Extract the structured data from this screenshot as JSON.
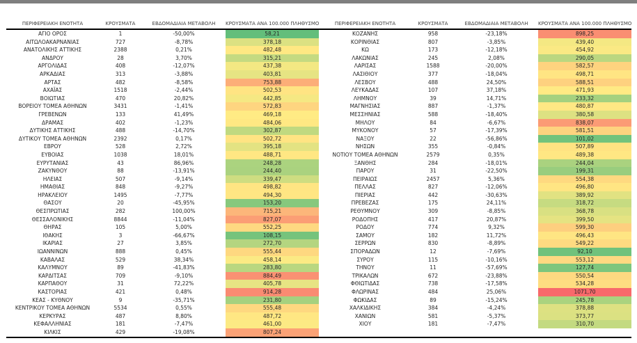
{
  "chart_data": {
    "type": "table",
    "columns": [
      "ΠΕΡΙΦΕΡΕΙΑΚΗ ΕΝΟΤΗΤΑ",
      "ΚΡΟΥΣΜΑΤΑ",
      "ΕΒΔΟΜΑΔΙΑΙΑ ΜΕΤΑΒΟΛΗ",
      "ΚΡΟΥΣΜΑΤΑ ΑΝΑ 100.000 ΠΛΗΘΥΣΜΟ"
    ],
    "heat_column": "ΚΡΟΥΣΜΑΤΑ ΑΝΑ 100.000 ΠΛΗΘΥΣΜΟ",
    "color_scale": {
      "min_color": "#63BE7B",
      "mid_color": "#FFEB84",
      "max_color": "#F8696B",
      "mid_rule": "percentile-50"
    },
    "left_rows": [
      [
        "ΑΓΙΟ ΟΡΟΣ",
        "1",
        "-50,00%",
        "58,21"
      ],
      [
        "ΑΙΤΩΛΟΑΚΑΡΝΑΝΙΑΣ",
        "727",
        "-8,78%",
        "378,18"
      ],
      [
        "ΑΝΑΤΟΛΙΚΗΣ ΑΤΤΙΚΗΣ",
        "2388",
        "0,21%",
        "482,48"
      ],
      [
        "ΑΝΔΡΟΥ",
        "28",
        "3,70%",
        "315,21"
      ],
      [
        "ΑΡΓΟΛΙΔΑΣ",
        "408",
        "-12,07%",
        "437,38"
      ],
      [
        "ΑΡΚΑΔΙΑΣ",
        "313",
        "-3,88%",
        "403,81"
      ],
      [
        "ΑΡΤΑΣ",
        "482",
        "-8,58%",
        "753,88"
      ],
      [
        "ΑΧΑΪΑΣ",
        "1518",
        "-2,44%",
        "502,53"
      ],
      [
        "ΒΟΙΩΤΙΑΣ",
        "470",
        "20,82%",
        "442,85"
      ],
      [
        "ΒΟΡΕΙΟΥ ΤΟΜΕΑ ΑΘΗΝΩΝ",
        "3431",
        "-1,41%",
        "572,83"
      ],
      [
        "ΓΡΕΒΕΝΩΝ",
        "133",
        "41,49%",
        "469,18"
      ],
      [
        "ΔΡΑΜΑΣ",
        "402",
        "-1,23%",
        "484,06"
      ],
      [
        "ΔΥΤΙΚΗΣ ΑΤΤΙΚΗΣ",
        "488",
        "-14,70%",
        "302,87"
      ],
      [
        "ΔΥΤΙΚΟΥ ΤΟΜΕΑ ΑΘΗΝΩΝ",
        "2392",
        "0,17%",
        "502,72"
      ],
      [
        "ΕΒΡΟΥ",
        "528",
        "2,72%",
        "395,18"
      ],
      [
        "ΕΥΒΟΙΑΣ",
        "1038",
        "18,01%",
        "488,71"
      ],
      [
        "ΕΥΡΥΤΑΝΙΑΣ",
        "43",
        "86,96%",
        "248,28"
      ],
      [
        "ΖΑΚΥΝΘΟΥ",
        "88",
        "-13,91%",
        "244,40"
      ],
      [
        "ΗΛΕΙΑΣ",
        "507",
        "-9,14%",
        "339,47"
      ],
      [
        "ΗΜΑΘΙΑΣ",
        "848",
        "-9,27%",
        "498,82"
      ],
      [
        "ΗΡΑΚΛΕΙΟΥ",
        "1495",
        "-7,77%",
        "494,30"
      ],
      [
        "ΘΑΣΟΥ",
        "20",
        "-45,95%",
        "153,20"
      ],
      [
        "ΘΕΣΠΡΩΤΙΑΣ",
        "282",
        "100,00%",
        "715,21"
      ],
      [
        "ΘΕΣΣΑΛΟΝΙΚΗΣ",
        "8844",
        "-11,04%",
        "827,07"
      ],
      [
        "ΘΗΡΑΣ",
        "105",
        "5,00%",
        "552,25"
      ],
      [
        "ΙΘΑΚΗΣ",
        "3",
        "-66,67%",
        "108,15"
      ],
      [
        "ΙΚΑΡΙΑΣ",
        "27",
        "3,85%",
        "272,70"
      ],
      [
        "ΙΩΑΝΝΙΝΩΝ",
        "888",
        "0,45%",
        "555,44"
      ],
      [
        "ΚΑΒΑΛΑΣ",
        "529",
        "38,34%",
        "458,14"
      ],
      [
        "ΚΑΛΥΜΝΟΥ",
        "89",
        "-41,83%",
        "283,80"
      ],
      [
        "ΚΑΡΔΙΤΣΑΣ",
        "709",
        "-9,10%",
        "884,49"
      ],
      [
        "ΚΑΡΠΑΘΟΥ",
        "31",
        "72,22%",
        "405,78"
      ],
      [
        "ΚΑΣΤΟΡΙΑΣ",
        "421",
        "0,48%",
        "914,28"
      ],
      [
        "ΚΕΑΣ - ΚΥΘΝΟΥ",
        "9",
        "-35,71%",
        "231,80"
      ],
      [
        "ΚΕΝΤΡΙΚΟΥ ΤΟΜΕΑ ΑΘΗΝΩΝ",
        "5534",
        "0,55%",
        "555,48"
      ],
      [
        "ΚΕΡΚΥΡΑΣ",
        "487",
        "8,80%",
        "487,72"
      ],
      [
        "ΚΕΦΑΛΛΗΝΙΑΣ",
        "181",
        "-7,47%",
        "461,00"
      ],
      [
        "ΚΙΛΚΙΣ",
        "429",
        "-19,08%",
        "807,24"
      ]
    ],
    "right_rows": [
      [
        "ΚΟΖΑΝΗΣ",
        "958",
        "-23,18%",
        "898,25"
      ],
      [
        "ΚΟΡΙΝΘΙΑΣ",
        "807",
        "-3,85%",
        "439,40"
      ],
      [
        "ΚΩ",
        "173",
        "-12,18%",
        "454,92"
      ],
      [
        "ΛΑΚΩΝΙΑΣ",
        "245",
        "2,08%",
        "290,05"
      ],
      [
        "ΛΑΡΙΣΑΣ",
        "1588",
        "-20,00%",
        "582,57"
      ],
      [
        "ΛΑΣΙΘΙΟΥ",
        "377",
        "-18,04%",
        "498,71"
      ],
      [
        "ΛΕΣΒΟΥ",
        "488",
        "24,50%",
        "588,51"
      ],
      [
        "ΛΕΥΚΑΔΑΣ",
        "107",
        "37,18%",
        "471,93"
      ],
      [
        "ΛΗΜΝΟΥ",
        "39",
        "14,71%",
        "233,32"
      ],
      [
        "ΜΑΓΝΗΣΙΑΣ",
        "887",
        "-1,37%",
        "480,87"
      ],
      [
        "ΜΕΣΣΗΝΙΑΣ",
        "588",
        "-18,40%",
        "380,58"
      ],
      [
        "ΜΗΛΟΥ",
        "84",
        "-6,67%",
        "838,07"
      ],
      [
        "ΜΥΚΟΝΟΥ",
        "57",
        "-17,39%",
        "581,51"
      ],
      [
        "ΝΑΞΟΥ",
        "22",
        "-56,86%",
        "101,02"
      ],
      [
        "ΝΗΣΩΝ",
        "355",
        "-0,84%",
        "507,89"
      ],
      [
        "ΝΟΤΙΟΥ ΤΟΜΕΑ ΑΘΗΝΩΝ",
        "2579",
        "0,35%",
        "489,38"
      ],
      [
        "ΞΑΝΘΗΣ",
        "284",
        "-18,01%",
        "244,04"
      ],
      [
        "ΠΑΡΟΥ",
        "31",
        "-22,50%",
        "199,31"
      ],
      [
        "ΠΕΙΡΑΙΩΣ",
        "2457",
        "5,36%",
        "554,38"
      ],
      [
        "ΠΕΛΛΑΣ",
        "827",
        "-12,06%",
        "496,80"
      ],
      [
        "ΠΙΕΡΙΑΣ",
        "442",
        "-30,63%",
        "389,92"
      ],
      [
        "ΠΡΕΒΕΖΑΣ",
        "175",
        "24,11%",
        "318,72"
      ],
      [
        "ΡΕΘΥΜΝΟΥ",
        "309",
        "-8,85%",
        "368,78"
      ],
      [
        "ΡΟΔΟΠΗΣ",
        "417",
        "20,87%",
        "399,50"
      ],
      [
        "ΡΟΔΟΥ",
        "774",
        "9,32%",
        "599,30"
      ],
      [
        "ΣΑΜΟΥ",
        "182",
        "11,72%",
        "496,43"
      ],
      [
        "ΣΕΡΡΩΝ",
        "830",
        "-8,89%",
        "549,22"
      ],
      [
        "ΣΠΟΡΑΔΩΝ",
        "12",
        "-7,69%",
        "92,10"
      ],
      [
        "ΣΥΡΟΥ",
        "115",
        "-10,16%",
        "553,12"
      ],
      [
        "ΤΗΝΟΥ",
        "11",
        "-57,69%",
        "127,74"
      ],
      [
        "ΤΡΙΚΑΛΩΝ",
        "672",
        "-23,88%",
        "550,54"
      ],
      [
        "ΦΘΙΩΤΙΔΑΣ",
        "738",
        "-17,58%",
        "534,28"
      ],
      [
        "ΦΛΩΡΙΝΑΣ",
        "484",
        "25,06%",
        "1071,70"
      ],
      [
        "ΦΩΚΙΔΑΣ",
        "89",
        "-15,24%",
        "245,78"
      ],
      [
        "ΧΑΛΚΙΔΙΚΗΣ",
        "384",
        "-4,24%",
        "378,88"
      ],
      [
        "ΧΑΝΙΩΝ",
        "581",
        "-5,37%",
        "373,77"
      ],
      [
        "ΧΙΟΥ",
        "181",
        "-7,47%",
        "310,70"
      ]
    ]
  }
}
